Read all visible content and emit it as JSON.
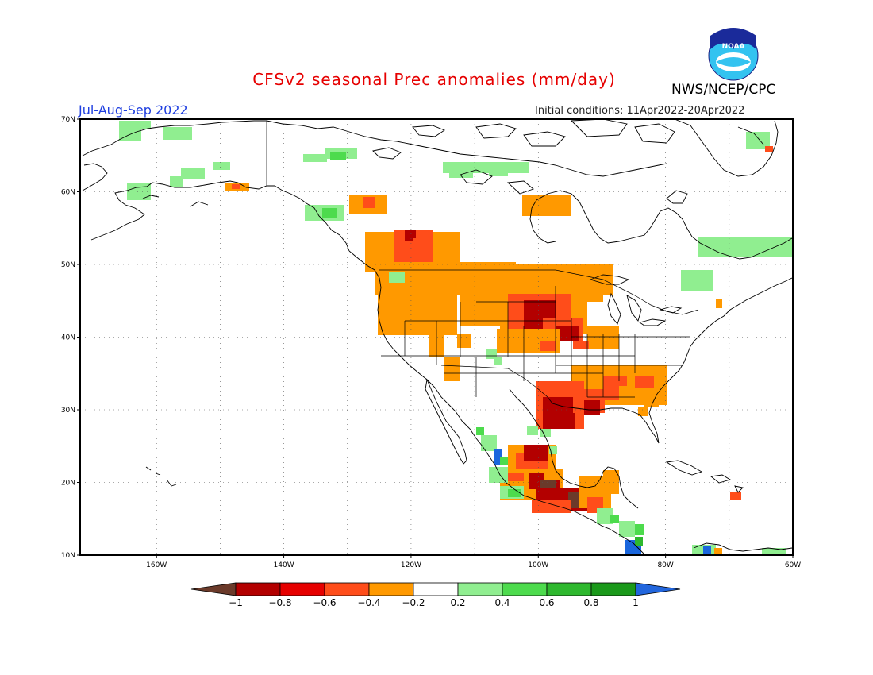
{
  "title": "CFSv2 seasonal Prec anomalies (mm/day)",
  "agency": "NWS/NCEP/CPC",
  "logo_text": "NOAA",
  "season": "Jul-Aug-Sep 2022",
  "initial_conditions": "Initial conditions: 11Apr2022-20Apr2022",
  "map": {
    "lon_range": [
      -172,
      -60
    ],
    "lat_range": [
      10,
      70
    ],
    "lat_ticks": [
      "10N",
      "20N",
      "30N",
      "40N",
      "50N",
      "60N",
      "70N"
    ],
    "lon_ticks": [
      "160W",
      "140W",
      "120W",
      "100W",
      "80W",
      "60W"
    ],
    "gridlines": "dotted"
  },
  "colorbar": {
    "labels": [
      "-1",
      "-0.8",
      "-0.6",
      "-0.4",
      "-0.2",
      "0.2",
      "0.4",
      "0.6",
      "0.8",
      "1"
    ],
    "colors": [
      "#6b3a2a",
      "#b30000",
      "#e60000",
      "#ff4d1a",
      "#ff9900",
      "#ffffff",
      "#90ee90",
      "#4ddb4d",
      "#2eb82e",
      "#1a991a",
      "#2266dd"
    ]
  },
  "anomaly_colors": {
    "dry1": "#ff9900",
    "dry2": "#ff4d1a",
    "dry3": "#b30000",
    "dry4": "#6b3a2a",
    "wet1": "#90ee90",
    "wet2": "#4ddb4d",
    "wet3": "#2eb82e",
    "wet4": "#1a66dd"
  }
}
